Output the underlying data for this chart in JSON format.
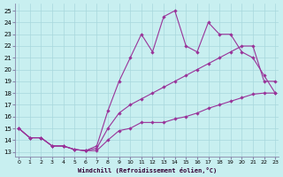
{
  "xlabel": "Windchill (Refroidissement éolien,°C)",
  "bg_color": "#c8eff0",
  "grid_color": "#a8d8dc",
  "line_color": "#993399",
  "x_ticks": [
    0,
    1,
    2,
    3,
    4,
    5,
    6,
    7,
    8,
    9,
    10,
    11,
    12,
    13,
    14,
    15,
    16,
    17,
    18,
    19,
    20,
    21,
    22,
    23
  ],
  "y_ticks": [
    13,
    14,
    15,
    16,
    17,
    18,
    19,
    20,
    21,
    22,
    23,
    24,
    25
  ],
  "xlim": [
    -0.3,
    23.3
  ],
  "ylim": [
    12.6,
    25.6
  ],
  "line1_x": [
    0,
    1,
    2,
    3,
    4,
    5,
    6,
    7,
    8,
    9,
    10,
    11,
    12,
    13,
    14,
    15,
    16,
    17,
    18,
    19,
    20,
    21,
    22,
    23
  ],
  "line1_y": [
    15.0,
    14.2,
    14.2,
    13.5,
    13.5,
    13.2,
    13.1,
    13.1,
    14.0,
    14.8,
    15.0,
    15.5,
    15.5,
    15.5,
    15.8,
    16.0,
    16.3,
    16.7,
    17.0,
    17.3,
    17.6,
    17.9,
    18.0,
    18.0
  ],
  "line2_x": [
    0,
    1,
    2,
    3,
    4,
    5,
    6,
    7,
    8,
    9,
    10,
    11,
    12,
    13,
    14,
    15,
    16,
    17,
    18,
    19,
    20,
    21,
    22,
    23
  ],
  "line2_y": [
    15.0,
    14.2,
    14.2,
    13.5,
    13.5,
    13.2,
    13.1,
    13.5,
    16.5,
    19.0,
    21.0,
    23.0,
    21.5,
    24.5,
    25.0,
    22.0,
    21.5,
    24.0,
    23.0,
    23.0,
    21.5,
    21.0,
    19.5,
    18.0
  ],
  "line3_x": [
    0,
    1,
    2,
    3,
    4,
    5,
    6,
    7,
    8,
    9,
    10,
    11,
    12,
    13,
    14,
    15,
    16,
    17,
    18,
    19,
    20,
    21,
    22,
    23
  ],
  "line3_y": [
    15.0,
    14.2,
    14.2,
    13.5,
    13.5,
    13.2,
    13.1,
    13.3,
    15.0,
    16.3,
    17.0,
    17.5,
    18.0,
    18.5,
    19.0,
    19.5,
    20.0,
    20.5,
    21.0,
    21.5,
    22.0,
    22.0,
    19.0,
    19.0
  ]
}
